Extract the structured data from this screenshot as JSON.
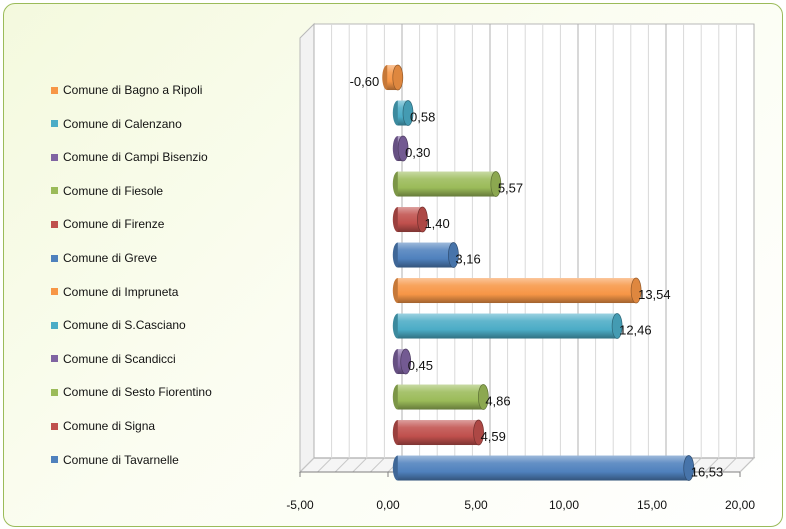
{
  "chart_data": {
    "type": "bar",
    "orientation": "horizontal",
    "style": "3d-cylinder",
    "categories": [
      "Comune di Bagno a Ripoli",
      "Comune di Calenzano",
      "Comune di Campi Bisenzio",
      "Comune di Fiesole",
      "Comune di Firenze",
      "Comune di Greve",
      "Comune di Impruneta",
      "Comune di S.Casciano",
      "Comune di Scandicci",
      "Comune di Sesto Fiorentino",
      "Comune di Signa",
      "Comune di Tavarnelle"
    ],
    "values": [
      -0.6,
      0.58,
      0.3,
      5.57,
      1.4,
      3.16,
      13.54,
      12.46,
      0.45,
      4.86,
      4.59,
      16.53
    ],
    "value_labels": [
      "-0,60",
      "0,58",
      "0,30",
      "5,57",
      "1,40",
      "3,16",
      "13,54",
      "12,46",
      "0,45",
      "4,86",
      "4,59",
      "16,53"
    ],
    "colors": [
      "#f79646",
      "#4bacc6",
      "#8064a2",
      "#9bbb59",
      "#c0504d",
      "#4f81bd",
      "#f79646",
      "#4bacc6",
      "#8064a2",
      "#9bbb59",
      "#c0504d",
      "#4f81bd"
    ],
    "xlim": [
      -5,
      20
    ],
    "xticks": [
      -5,
      0,
      5,
      10,
      15,
      20
    ],
    "xtick_labels": [
      "-5,00",
      "0,00",
      "5,00",
      "10,00",
      "15,00",
      "20,00"
    ],
    "grid": true,
    "legend_position": "left",
    "title": "",
    "xlabel": "",
    "ylabel": ""
  }
}
